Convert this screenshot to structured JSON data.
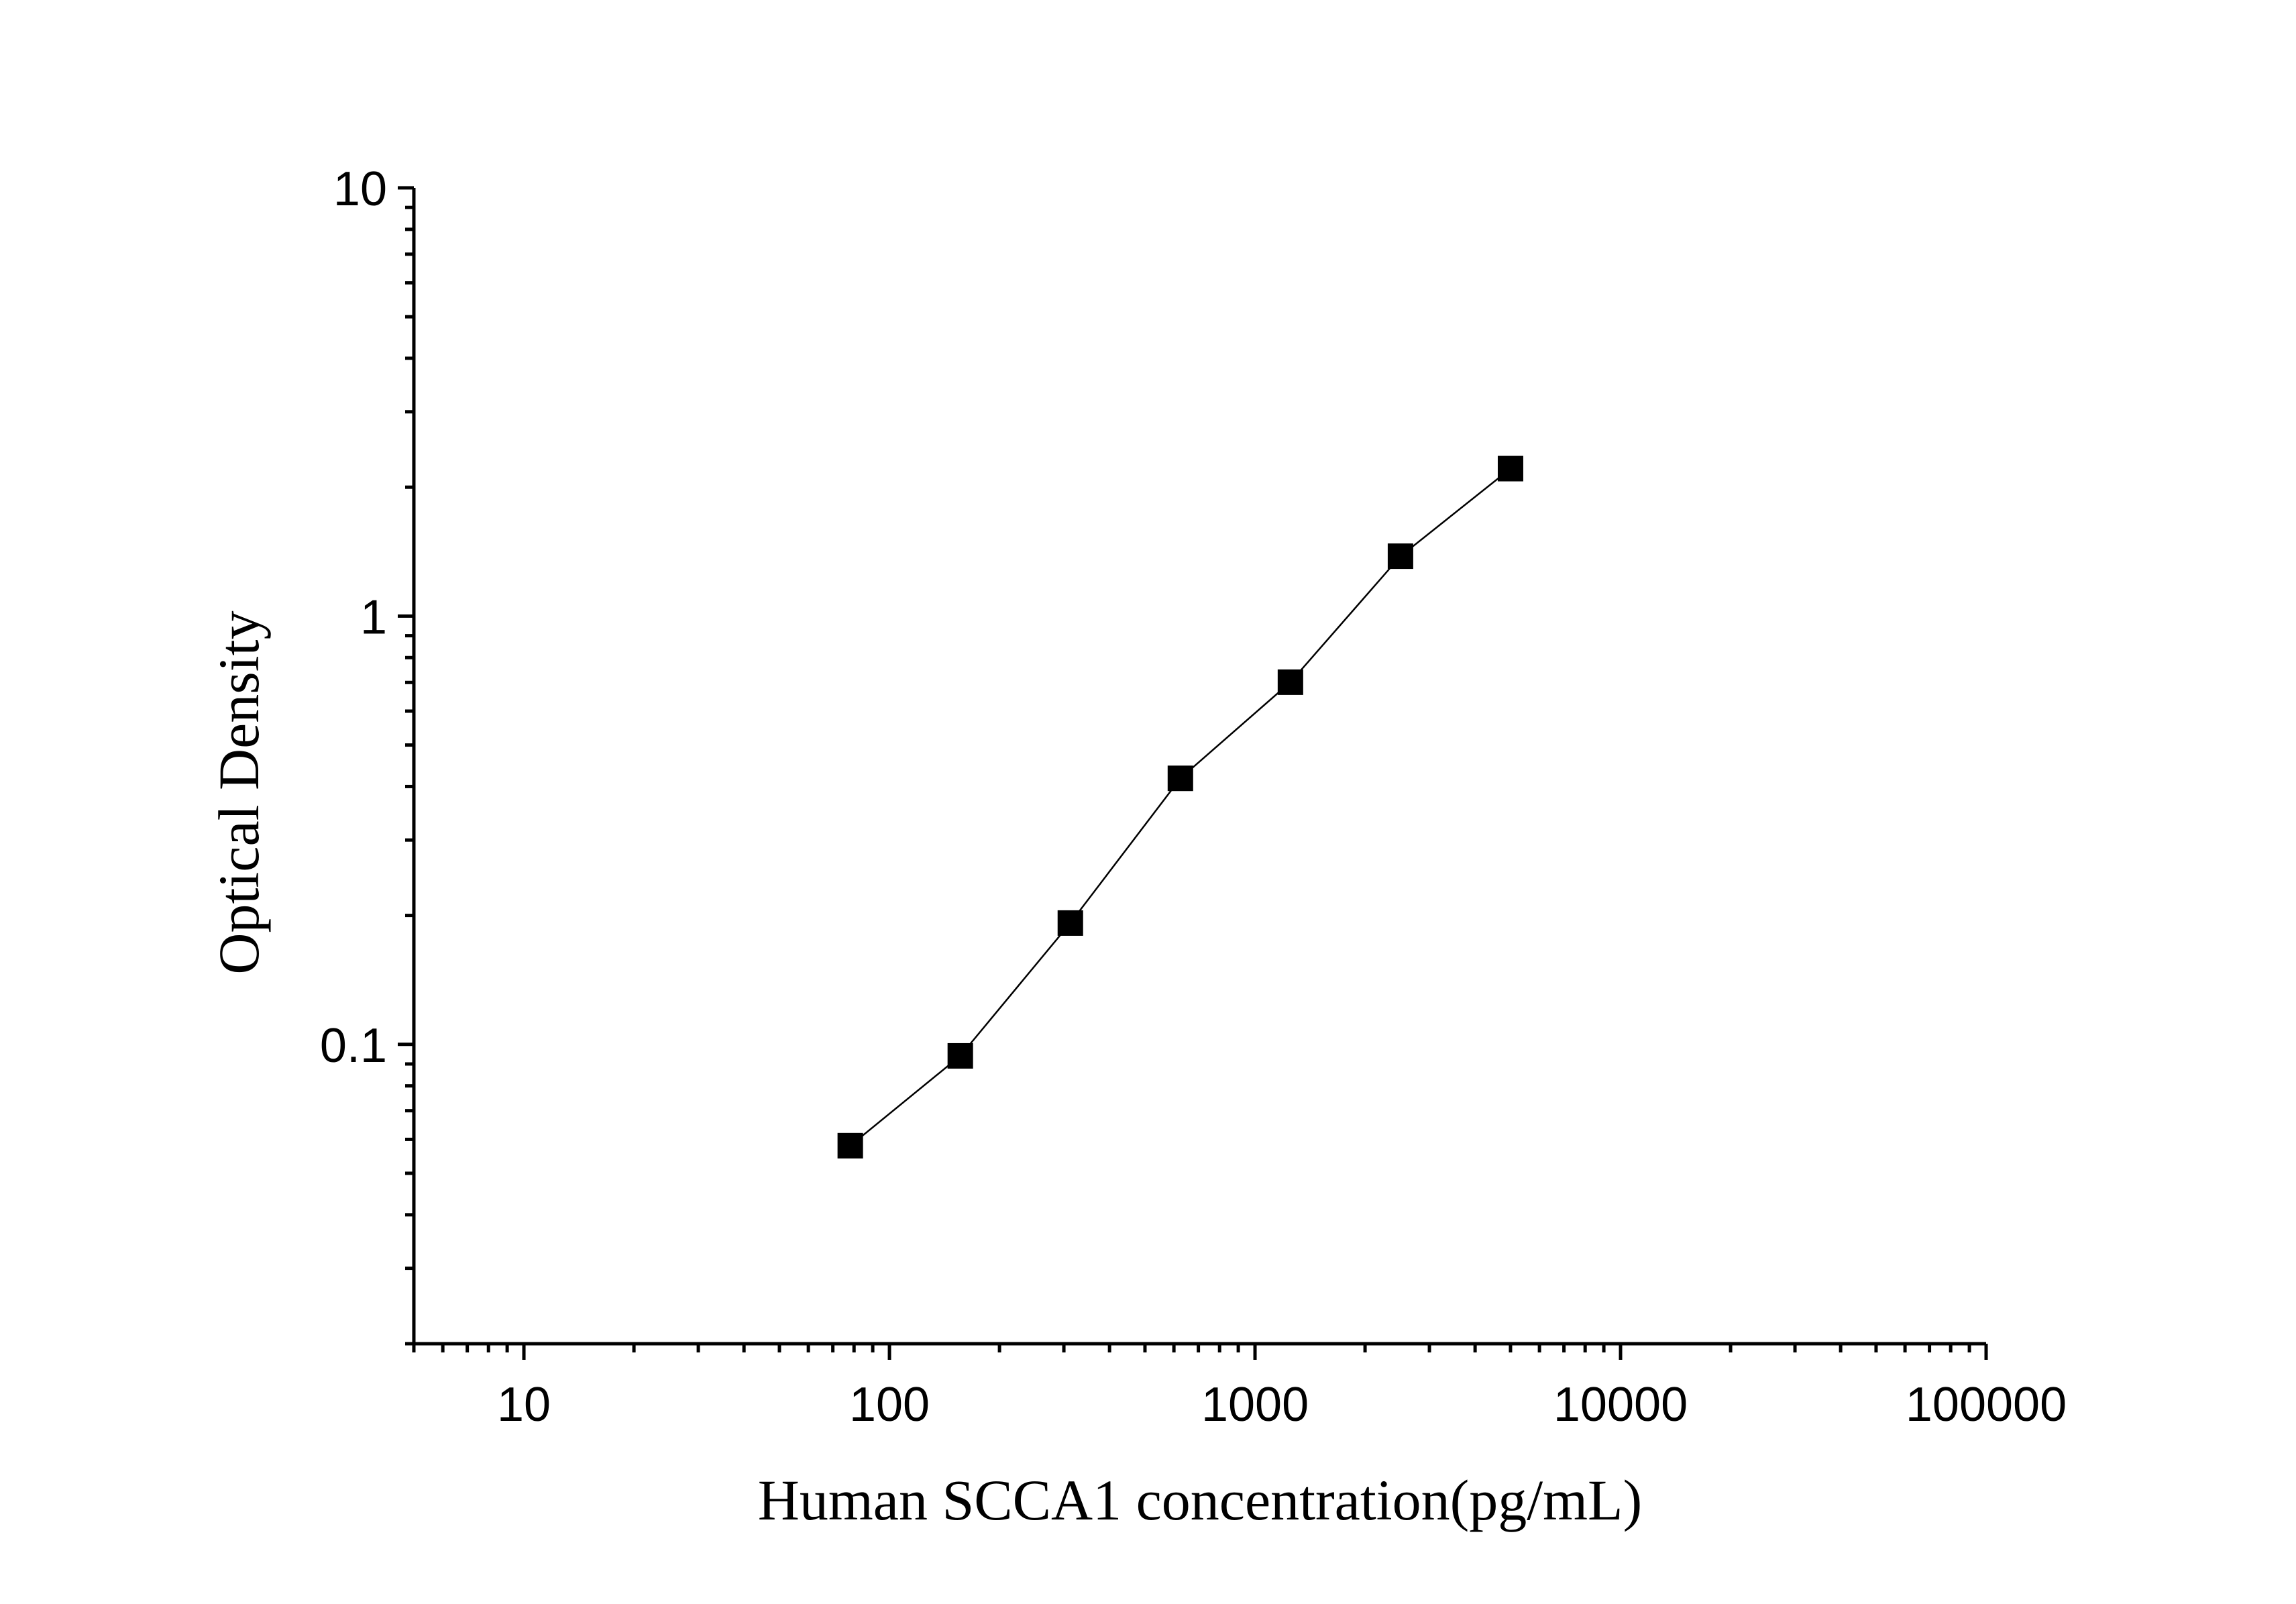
{
  "chart_data": {
    "type": "scatter",
    "xlabel": "Human SCCA1 concentration(pg/mL)",
    "ylabel": "Optical Density",
    "xscale": "log",
    "yscale": "log",
    "xlim": [
      5,
      100000
    ],
    "ylim": [
      0.02,
      10
    ],
    "x_tick_labels": [
      "10",
      "100",
      "1000",
      "10000",
      "100000"
    ],
    "y_tick_labels": [
      "0.1",
      "1",
      "10"
    ],
    "grid": false,
    "legend": "none",
    "marker": "square",
    "line": "connected",
    "color": "#000000",
    "x": [
      78.13,
      156.25,
      312.5,
      625,
      1250,
      2500,
      5000
    ],
    "y": [
      0.058,
      0.094,
      0.192,
      0.418,
      0.701,
      1.38,
      2.21
    ]
  }
}
